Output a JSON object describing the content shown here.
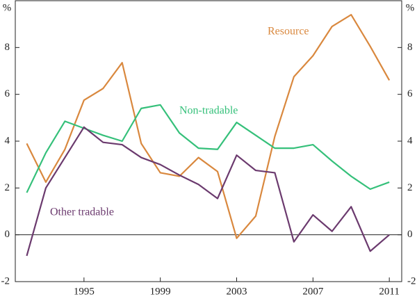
{
  "chart_data": {
    "type": "line",
    "ylabel": "%",
    "y2label": "%",
    "x": [
      1992,
      1993,
      1994,
      1995,
      1996,
      1997,
      1998,
      1999,
      2000,
      2001,
      2002,
      2003,
      2004,
      2005,
      2006,
      2007,
      2008,
      2009,
      2010,
      2011
    ],
    "series": [
      {
        "name": "Resource",
        "color": "#d9883e",
        "values": [
          3.9,
          2.25,
          3.65,
          5.75,
          6.25,
          7.35,
          3.9,
          2.65,
          2.5,
          3.3,
          2.7,
          -0.15,
          0.8,
          4.2,
          6.75,
          7.65,
          8.9,
          9.4,
          8.05,
          6.6
        ]
      },
      {
        "name": "Non-tradable",
        "color": "#35c07a",
        "values": [
          1.8,
          3.5,
          4.85,
          4.55,
          4.25,
          4.0,
          5.4,
          5.55,
          4.35,
          3.7,
          3.65,
          4.8,
          4.25,
          3.7,
          3.7,
          3.85,
          3.15,
          2.5,
          1.95,
          2.25
        ]
      },
      {
        "name": "Other tradable",
        "color": "#6b3a6e",
        "values": [
          -0.9,
          2.0,
          3.3,
          4.6,
          3.95,
          3.85,
          3.3,
          3.0,
          2.55,
          2.15,
          1.55,
          3.4,
          2.75,
          2.65,
          -0.3,
          0.85,
          0.15,
          1.2,
          -0.7,
          0
        ]
      }
    ],
    "xlim": [
      1991.4,
      2011.65
    ],
    "xticks": [
      1995,
      1999,
      2003,
      2007,
      2011
    ],
    "ylim": [
      -2,
      10
    ],
    "yticks": [
      -2,
      0,
      2,
      4,
      6,
      8
    ],
    "y2lim": [
      -2,
      10
    ],
    "y2ticks": [
      -2,
      0,
      2,
      4,
      6,
      8
    ]
  }
}
